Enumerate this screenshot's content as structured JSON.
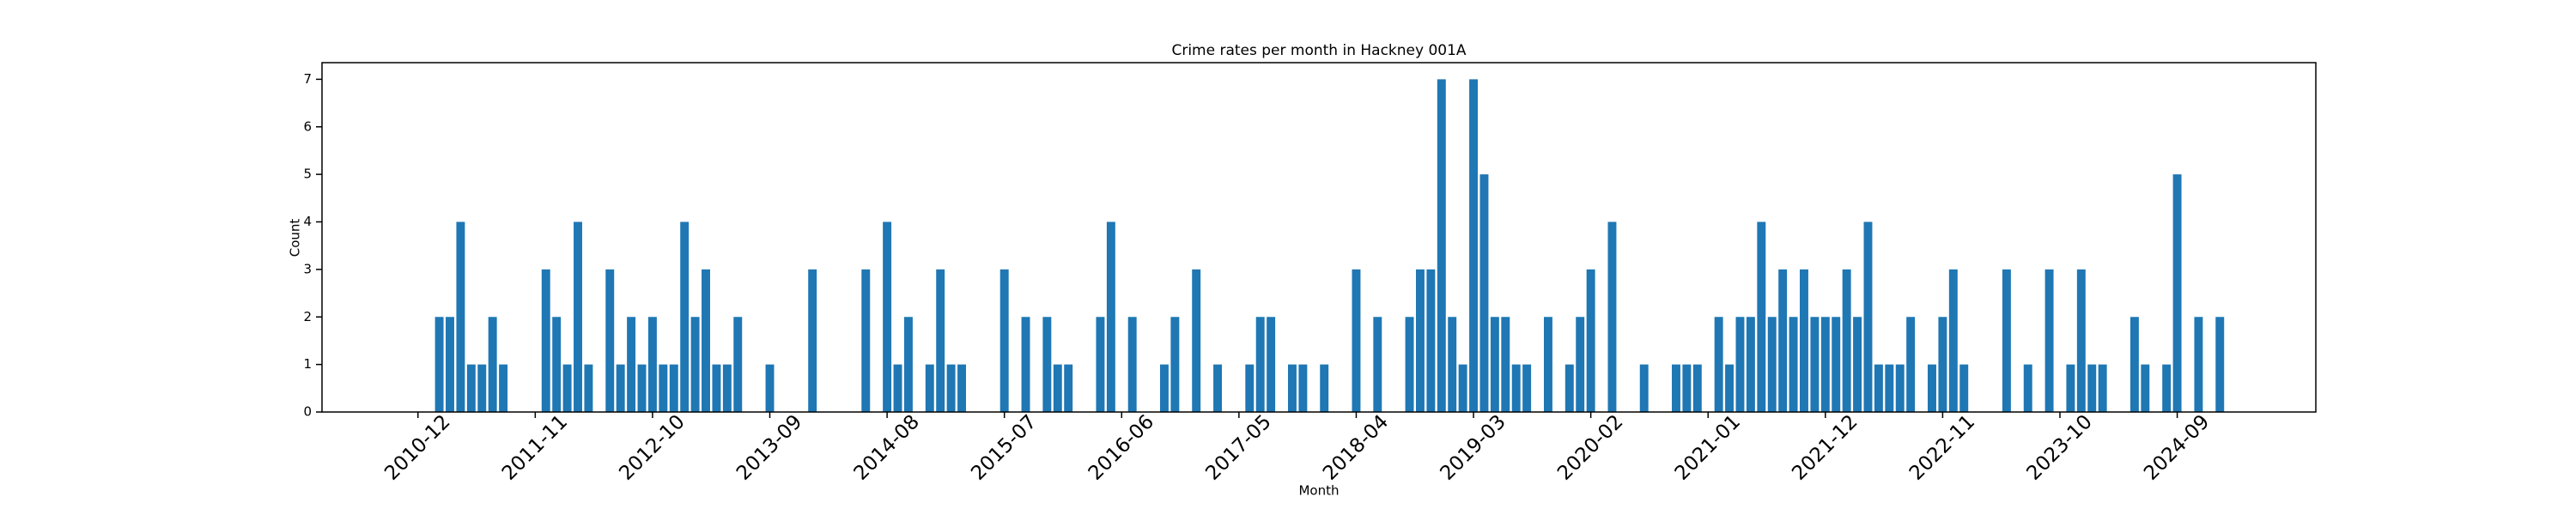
{
  "chart_data": {
    "type": "bar",
    "title": "Crime rates per month in Hackney 001A",
    "xlabel": "Month",
    "ylabel": "Count",
    "color": "#1f77b4",
    "x": [
      "2011-02",
      "2011-03",
      "2011-04",
      "2011-05",
      "2011-06",
      "2011-07",
      "2011-08",
      "2011-12",
      "2012-01",
      "2012-02",
      "2012-03",
      "2012-04",
      "2012-06",
      "2012-07",
      "2012-08",
      "2012-09",
      "2012-10",
      "2012-11",
      "2012-12",
      "2013-01",
      "2013-02",
      "2013-03",
      "2013-04",
      "2013-05",
      "2013-06",
      "2013-09",
      "2014-01",
      "2014-06",
      "2014-08",
      "2014-09",
      "2014-10",
      "2014-12",
      "2015-01",
      "2015-02",
      "2015-03",
      "2015-07",
      "2015-09",
      "2015-11",
      "2015-12",
      "2016-01",
      "2016-04",
      "2016-05",
      "2016-07",
      "2016-10",
      "2016-11",
      "2017-01",
      "2017-03",
      "2017-06",
      "2017-07",
      "2017-08",
      "2017-10",
      "2017-11",
      "2018-01",
      "2018-04",
      "2018-06",
      "2018-09",
      "2018-10",
      "2018-11",
      "2018-12",
      "2019-01",
      "2019-02",
      "2019-03",
      "2019-04",
      "2019-05",
      "2019-06",
      "2019-07",
      "2019-08",
      "2019-10",
      "2019-12",
      "2020-01",
      "2020-02",
      "2020-04",
      "2020-07",
      "2020-10",
      "2020-11",
      "2020-12",
      "2021-02",
      "2021-03",
      "2021-04",
      "2021-05",
      "2021-06",
      "2021-07",
      "2021-08",
      "2021-09",
      "2021-10",
      "2021-11",
      "2021-12",
      "2022-01",
      "2022-02",
      "2022-03",
      "2022-04",
      "2022-05",
      "2022-06",
      "2022-07",
      "2022-08",
      "2022-10",
      "2022-11",
      "2022-12",
      "2023-01",
      "2023-05",
      "2023-07",
      "2023-09",
      "2023-11",
      "2023-12",
      "2024-01",
      "2024-02",
      "2024-05",
      "2024-06",
      "2024-08",
      "2024-09",
      "2024-11",
      "2025-01"
    ],
    "values": [
      2,
      2,
      4,
      1,
      1,
      2,
      1,
      3,
      2,
      1,
      4,
      1,
      3,
      1,
      2,
      1,
      2,
      1,
      1,
      4,
      2,
      3,
      1,
      1,
      2,
      1,
      3,
      3,
      4,
      1,
      2,
      1,
      3,
      1,
      1,
      3,
      2,
      2,
      1,
      1,
      2,
      4,
      2,
      1,
      2,
      3,
      1,
      1,
      2,
      2,
      1,
      1,
      1,
      3,
      2,
      2,
      3,
      3,
      7,
      2,
      1,
      7,
      5,
      2,
      2,
      1,
      1,
      2,
      1,
      2,
      3,
      4,
      1,
      1,
      1,
      1,
      2,
      1,
      2,
      2,
      4,
      2,
      3,
      2,
      3,
      2,
      2,
      2,
      3,
      2,
      4,
      1,
      1,
      1,
      2,
      1,
      2,
      3,
      1,
      3,
      1,
      3,
      1,
      3,
      1,
      1,
      2,
      1,
      1,
      5,
      2,
      2
    ],
    "xlim": [
      "2010-03",
      "2025-10"
    ],
    "xticks": [
      "2010-12",
      "2011-11",
      "2012-10",
      "2013-09",
      "2014-08",
      "2015-07",
      "2016-06",
      "2017-05",
      "2018-04",
      "2019-03",
      "2020-02",
      "2021-01",
      "2021-12",
      "2022-11",
      "2023-10",
      "2024-09"
    ],
    "ylim": [
      0,
      7.35
    ],
    "yticks": [
      0,
      1,
      2,
      3,
      4,
      5,
      6,
      7
    ]
  }
}
